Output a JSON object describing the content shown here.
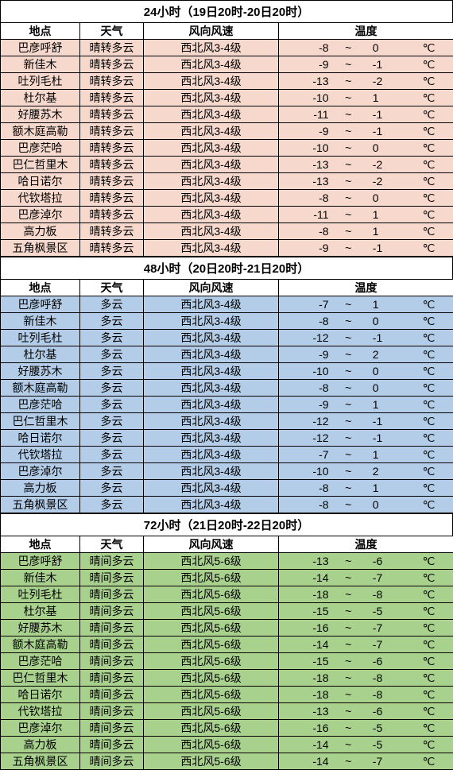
{
  "headers": {
    "place": "地点",
    "weather": "天气",
    "wind": "风向风速",
    "temp": "温度"
  },
  "tempSeparator": "~",
  "tempUnit": "℃",
  "colors": {
    "section1": "#f6d8cd",
    "section2": "#b3cde8",
    "section3": "#a9d18e"
  },
  "sections": [
    {
      "title": "24小时（19日20时-20日20时）",
      "bgClass": "bg-pink",
      "rows": [
        {
          "place": "巴彦呼舒",
          "weather": "晴转多云",
          "wind": "西北风3-4级",
          "low": -8,
          "high": 0
        },
        {
          "place": "新佳木",
          "weather": "晴转多云",
          "wind": "西北风3-4级",
          "low": -9,
          "high": -1
        },
        {
          "place": "吐列毛杜",
          "weather": "晴转多云",
          "wind": "西北风3-4级",
          "low": -13,
          "high": -2
        },
        {
          "place": "杜尔基",
          "weather": "晴转多云",
          "wind": "西北风3-4级",
          "low": -10,
          "high": 1
        },
        {
          "place": "好腰苏木",
          "weather": "晴转多云",
          "wind": "西北风3-4级",
          "low": -11,
          "high": -1
        },
        {
          "place": "额木庭高勒",
          "weather": "晴转多云",
          "wind": "西北风3-4级",
          "low": -9,
          "high": -1
        },
        {
          "place": "巴彦茫哈",
          "weather": "晴转多云",
          "wind": "西北风3-4级",
          "low": -10,
          "high": 0
        },
        {
          "place": "巴仁哲里木",
          "weather": "晴转多云",
          "wind": "西北风3-4级",
          "low": -13,
          "high": -2
        },
        {
          "place": "哈日诺尔",
          "weather": "晴转多云",
          "wind": "西北风3-4级",
          "low": -13,
          "high": -2
        },
        {
          "place": "代钦塔拉",
          "weather": "晴转多云",
          "wind": "西北风3-4级",
          "low": -8,
          "high": 0
        },
        {
          "place": "巴彦淖尔",
          "weather": "晴转多云",
          "wind": "西北风3-4级",
          "low": -11,
          "high": 1
        },
        {
          "place": "高力板",
          "weather": "晴转多云",
          "wind": "西北风3-4级",
          "low": -8,
          "high": 1
        },
        {
          "place": "五角枫景区",
          "weather": "晴转多云",
          "wind": "西北风3-4级",
          "low": -9,
          "high": -1
        }
      ]
    },
    {
      "title": "48小时（20日20时-21日20时）",
      "bgClass": "bg-blue",
      "rows": [
        {
          "place": "巴彦呼舒",
          "weather": "多云",
          "wind": "西北风3-4级",
          "low": -7,
          "high": 1
        },
        {
          "place": "新佳木",
          "weather": "多云",
          "wind": "西北风3-4级",
          "low": -8,
          "high": 0
        },
        {
          "place": "吐列毛杜",
          "weather": "多云",
          "wind": "西北风3-4级",
          "low": -12,
          "high": -1
        },
        {
          "place": "杜尔基",
          "weather": "多云",
          "wind": "西北风3-4级",
          "low": -9,
          "high": 2
        },
        {
          "place": "好腰苏木",
          "weather": "多云",
          "wind": "西北风3-4级",
          "low": -10,
          "high": 0
        },
        {
          "place": "额木庭高勒",
          "weather": "多云",
          "wind": "西北风3-4级",
          "low": -8,
          "high": 0
        },
        {
          "place": "巴彦茫哈",
          "weather": "多云",
          "wind": "西北风3-4级",
          "low": -9,
          "high": 1
        },
        {
          "place": "巴仁哲里木",
          "weather": "多云",
          "wind": "西北风3-4级",
          "low": -12,
          "high": -1
        },
        {
          "place": "哈日诺尔",
          "weather": "多云",
          "wind": "西北风3-4级",
          "low": -12,
          "high": -1
        },
        {
          "place": "代钦塔拉",
          "weather": "多云",
          "wind": "西北风3-4级",
          "low": -7,
          "high": 1
        },
        {
          "place": "巴彦淖尔",
          "weather": "多云",
          "wind": "西北风3-4级",
          "low": -10,
          "high": 2
        },
        {
          "place": "高力板",
          "weather": "多云",
          "wind": "西北风3-4级",
          "low": -8,
          "high": 1
        },
        {
          "place": "五角枫景区",
          "weather": "多云",
          "wind": "西北风3-4级",
          "low": -8,
          "high": 0
        }
      ]
    },
    {
      "title": "72小时（21日20时-22日20时）",
      "bgClass": "bg-green",
      "rows": [
        {
          "place": "巴彦呼舒",
          "weather": "晴间多云",
          "wind": "西北风5-6级",
          "low": -13,
          "high": -6
        },
        {
          "place": "新佳木",
          "weather": "晴间多云",
          "wind": "西北风5-6级",
          "low": -14,
          "high": -7
        },
        {
          "place": "吐列毛杜",
          "weather": "晴间多云",
          "wind": "西北风5-6级",
          "low": -18,
          "high": -8
        },
        {
          "place": "杜尔基",
          "weather": "晴间多云",
          "wind": "西北风5-6级",
          "low": -15,
          "high": -5
        },
        {
          "place": "好腰苏木",
          "weather": "晴间多云",
          "wind": "西北风5-6级",
          "low": -16,
          "high": -7
        },
        {
          "place": "额木庭高勒",
          "weather": "晴间多云",
          "wind": "西北风5-6级",
          "low": -14,
          "high": -7
        },
        {
          "place": "巴彦茫哈",
          "weather": "晴间多云",
          "wind": "西北风5-6级",
          "low": -15,
          "high": -6
        },
        {
          "place": "巴仁哲里木",
          "weather": "晴间多云",
          "wind": "西北风5-6级",
          "low": -18,
          "high": -8
        },
        {
          "place": "哈日诺尔",
          "weather": "晴间多云",
          "wind": "西北风5-6级",
          "low": -18,
          "high": -8
        },
        {
          "place": "代钦塔拉",
          "weather": "晴间多云",
          "wind": "西北风5-6级",
          "low": -13,
          "high": -6
        },
        {
          "place": "巴彦淖尔",
          "weather": "晴间多云",
          "wind": "西北风5-6级",
          "low": -16,
          "high": -5
        },
        {
          "place": "高力板",
          "weather": "晴间多云",
          "wind": "西北风5-6级",
          "low": -14,
          "high": -5
        },
        {
          "place": "五角枫景区",
          "weather": "晴间多云",
          "wind": "西北风5-6级",
          "low": -14,
          "high": -7
        }
      ]
    }
  ]
}
